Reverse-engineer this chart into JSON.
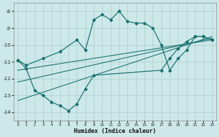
{
  "xlabel": "Humidex (Indice chaleur)",
  "background_color": "#cce8e8",
  "grid_color": "#aacccc",
  "line_color": "#1a7070",
  "xlim": [
    -0.5,
    23.5
  ],
  "ylim": [
    -14.5,
    -7.5
  ],
  "yticks": [
    -14,
    -13,
    -12,
    -11,
    -10,
    -9,
    -8
  ],
  "xticks": [
    0,
    1,
    2,
    3,
    4,
    5,
    6,
    7,
    8,
    9,
    10,
    11,
    12,
    13,
    14,
    15,
    16,
    17,
    18,
    19,
    20,
    21,
    22,
    23
  ],
  "curve_high_x": [
    0,
    1,
    3,
    5,
    7,
    8,
    9,
    10,
    11,
    12,
    13,
    14,
    15,
    16,
    17,
    18,
    19,
    20,
    21,
    22,
    23
  ],
  "curve_high_y": [
    -10.9,
    -11.2,
    -10.8,
    -10.4,
    -9.7,
    -10.3,
    -8.5,
    -8.2,
    -8.5,
    -8.0,
    -8.6,
    -8.7,
    -8.7,
    -9.0,
    -10.0,
    -11.5,
    -10.8,
    -10.3,
    -9.5,
    -9.5,
    -9.7
  ],
  "curve_low_x": [
    0,
    1,
    2,
    3,
    4,
    5,
    6,
    7,
    8,
    9,
    17,
    18,
    19,
    20,
    21,
    22,
    23
  ],
  "curve_low_y": [
    -10.9,
    -11.4,
    -12.7,
    -13.0,
    -13.4,
    -13.6,
    -13.9,
    -13.5,
    -12.6,
    -11.8,
    -11.5,
    -10.8,
    -10.2,
    -9.8,
    -9.5,
    -9.5,
    -9.7
  ],
  "line1_x": [
    0,
    23
  ],
  "line1_y": [
    -13.3,
    -9.5
  ],
  "line2_x": [
    0,
    23
  ],
  "line2_y": [
    -12.2,
    -9.6
  ],
  "line3_x": [
    0,
    23
  ],
  "line3_y": [
    -11.5,
    -9.7
  ]
}
